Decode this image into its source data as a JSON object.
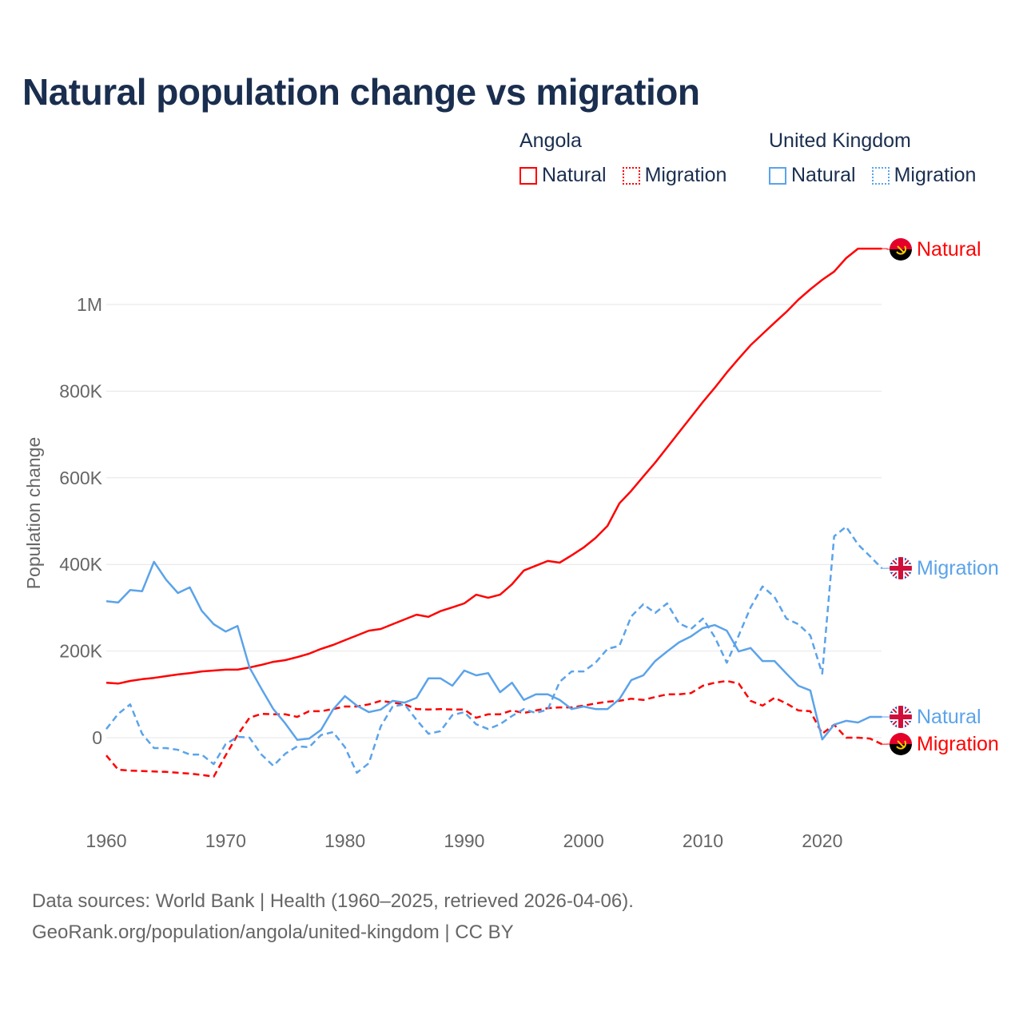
{
  "title": "Natural population change vs migration",
  "legend": {
    "groups": [
      {
        "name": "Angola",
        "items": [
          {
            "label": "Natural",
            "style": "solid",
            "color": "#ff0000"
          },
          {
            "label": "Migration",
            "style": "dotted",
            "color": "#ff0000"
          }
        ]
      },
      {
        "name": "United Kingdom",
        "items": [
          {
            "label": "Natural",
            "style": "solid",
            "color": "#5ba3ea"
          },
          {
            "label": "Migration",
            "style": "dotted",
            "color": "#5ba3ea"
          }
        ]
      }
    ]
  },
  "end_labels": {
    "angola_natural": "Natural",
    "uk_migration": "Migration",
    "uk_natural": "Natural",
    "angola_migration": "Migration"
  },
  "footer": {
    "line1": "Data sources: World Bank | Health (1960–2025, retrieved 2026-04-06).",
    "line2": "GeoRank.org/population/angola/united-kingdom | CC BY"
  },
  "chart_data": {
    "type": "line",
    "title": "Natural population change vs migration",
    "xlabel": "",
    "ylabel": "Population change",
    "xlim": [
      1960,
      2025
    ],
    "ylim": [
      -100000,
      1200000
    ],
    "x_ticks": [
      1960,
      1970,
      1980,
      1990,
      2000,
      2010,
      2020
    ],
    "x_tick_labels": [
      "1960",
      "1970",
      "1980",
      "1990",
      "2000",
      "2010",
      "2020"
    ],
    "y_ticks": [
      0,
      200000,
      400000,
      600000,
      800000,
      1000000
    ],
    "y_tick_labels": [
      "0",
      "200K",
      "400K",
      "600K",
      "800K",
      "1M"
    ],
    "grid": true,
    "legend_position": "top-right",
    "x_start": 1960,
    "series": [
      {
        "name": "Angola Natural",
        "color": "#ff0000",
        "dash": false,
        "values_k": [
          127,
          125,
          131,
          135,
          138,
          142,
          146,
          149,
          153,
          155,
          157,
          157,
          162,
          168,
          175,
          179,
          186,
          194,
          205,
          214,
          225,
          236,
          247,
          251,
          262,
          273,
          284,
          279,
          292,
          301,
          310,
          330,
          323,
          330,
          354,
          386,
          397,
          408,
          404,
          421,
          439,
          461,
          489,
          541,
          570,
          603,
          635,
          670,
          705,
          740,
          775,
          808,
          843,
          875,
          906,
          932,
          958,
          983,
          1011,
          1035,
          1057,
          1076,
          1107,
          1129,
          1129,
          1129
        ]
      },
      {
        "name": "Angola Migration",
        "color": "#ff0000",
        "dash": true,
        "values_k": [
          -41,
          -74,
          -76,
          -77,
          -78,
          -79,
          -81,
          -83,
          -86,
          -90,
          -41,
          6,
          46,
          55,
          54,
          54,
          48,
          61,
          61,
          66,
          72,
          72,
          77,
          85,
          81,
          77,
          66,
          65,
          66,
          65,
          65,
          46,
          54,
          54,
          63,
          57,
          63,
          68,
          70,
          70,
          74,
          79,
          83,
          85,
          90,
          87,
          94,
          100,
          100,
          103,
          120,
          127,
          131,
          125,
          85,
          74,
          92,
          79,
          63,
          61,
          9,
          30,
          0,
          0,
          -2,
          -15
        ]
      },
      {
        "name": "United Kingdom Natural",
        "color": "#5ba3ea",
        "dash": false,
        "values_k": [
          315,
          312,
          341,
          338,
          406,
          365,
          334,
          347,
          293,
          262,
          245,
          258,
          162,
          113,
          66,
          33,
          -5,
          -2,
          18,
          65,
          96,
          74,
          59,
          65,
          85,
          81,
          92,
          137,
          137,
          120,
          155,
          144,
          149,
          105,
          127,
          87,
          100,
          100,
          87,
          66,
          72,
          66,
          66,
          89,
          133,
          144,
          177,
          199,
          220,
          234,
          253,
          260,
          247,
          199,
          207,
          177,
          177,
          148,
          120,
          109,
          -4,
          30,
          39,
          35,
          48,
          48
        ]
      },
      {
        "name": "United Kingdom Migration",
        "color": "#5ba3ea",
        "dash": true,
        "values_k": [
          20,
          55,
          77,
          9,
          -24,
          -24,
          -28,
          -39,
          -39,
          -61,
          -15,
          2,
          0,
          -39,
          -65,
          -37,
          -20,
          -22,
          6,
          13,
          -22,
          -81,
          -59,
          26,
          72,
          77,
          41,
          9,
          15,
          52,
          59,
          31,
          20,
          31,
          50,
          66,
          57,
          65,
          129,
          153,
          153,
          173,
          205,
          212,
          280,
          308,
          288,
          310,
          264,
          251,
          275,
          232,
          173,
          236,
          301,
          349,
          325,
          275,
          262,
          236,
          148,
          465,
          487,
          446,
          419,
          391
        ]
      }
    ]
  }
}
